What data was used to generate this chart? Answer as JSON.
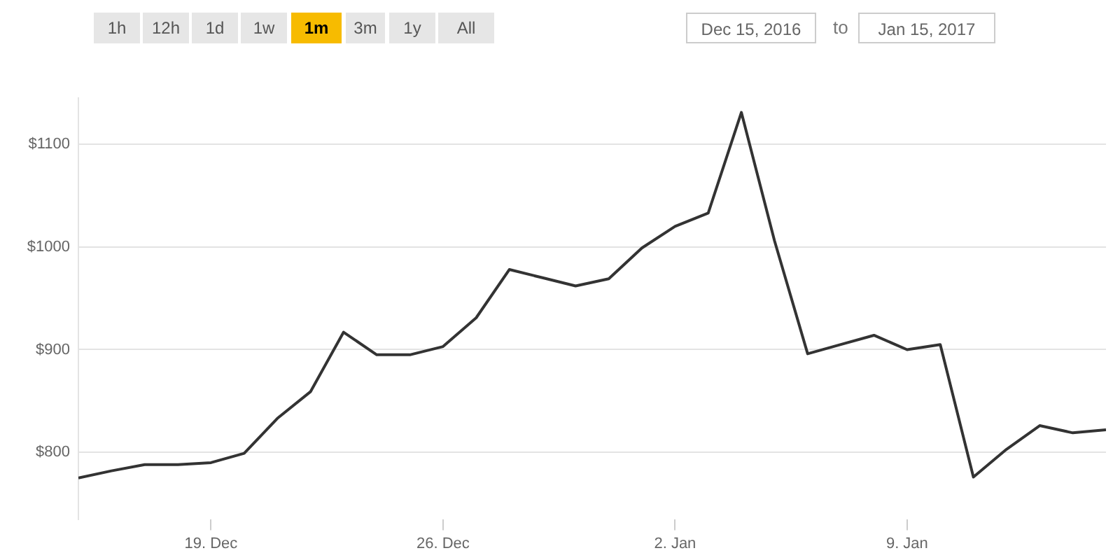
{
  "chart_data": {
    "type": "line",
    "annotations": [
      "1h",
      "12h",
      "1d",
      "1w",
      "1m",
      "3m",
      "1y",
      "All",
      "Dec 15, 2016",
      "to",
      "Jan 15, 2017"
    ],
    "x": [
      "2016-12-15",
      "2016-12-16",
      "2016-12-17",
      "2016-12-18",
      "2016-12-19",
      "2016-12-20",
      "2016-12-21",
      "2016-12-22",
      "2016-12-23",
      "2016-12-24",
      "2016-12-25",
      "2016-12-26",
      "2016-12-27",
      "2016-12-28",
      "2016-12-29",
      "2016-12-30",
      "2016-12-31",
      "2017-01-01",
      "2017-01-02",
      "2017-01-03",
      "2017-01-04",
      "2017-01-05",
      "2017-01-06",
      "2017-01-07",
      "2017-01-08",
      "2017-01-09",
      "2017-01-10",
      "2017-01-11",
      "2017-01-12",
      "2017-01-13",
      "2017-01-14",
      "2017-01-15"
    ],
    "series": [
      {
        "color": "#333333",
        "values": [
          775,
          782,
          788,
          788,
          790,
          799,
          833,
          859,
          917,
          895,
          895,
          903,
          931,
          978,
          970,
          962,
          969,
          999,
          1020,
          1033,
          1131,
          1006,
          896,
          905,
          914,
          900,
          905,
          776,
          803,
          826,
          819,
          822
        ]
      }
    ],
    "xlim": [
      "2016-12-15",
      "2017-01-15"
    ],
    "xticks": [
      {
        "value": "2016-12-19",
        "label": "19. Dec"
      },
      {
        "value": "2016-12-26",
        "label": "26. Dec"
      },
      {
        "value": "2017-01-02",
        "label": "2. Jan"
      },
      {
        "value": "2017-01-09",
        "label": "9. Jan"
      }
    ],
    "ylim": [
      735,
      1145
    ],
    "yticks": [
      {
        "value": 800,
        "label": "$800"
      },
      {
        "value": 900,
        "label": "$900"
      },
      {
        "value": 1000,
        "label": "$1000"
      },
      {
        "value": 1100,
        "label": "$1100"
      }
    ],
    "grid": "y",
    "legend": false,
    "marker": "none",
    "line_style": "solid"
  }
}
